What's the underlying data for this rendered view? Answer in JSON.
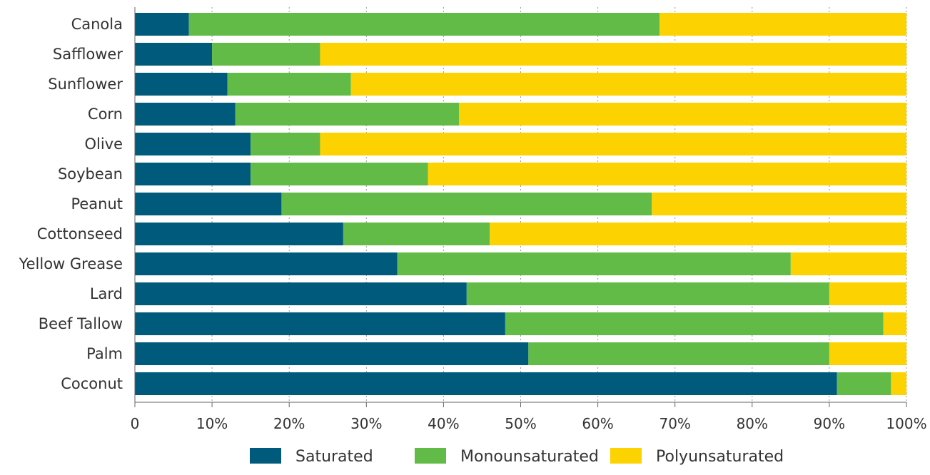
{
  "chart_data": {
    "type": "bar",
    "orientation": "horizontal",
    "stacked": true,
    "categories": [
      "Canola",
      "Safflower",
      "Sunflower",
      "Corn",
      "Olive",
      "Soybean",
      "Peanut",
      "Cottonseed",
      "Yellow Grease",
      "Lard",
      "Beef Tallow",
      "Palm",
      "Coconut"
    ],
    "series": [
      {
        "name": "Saturated",
        "color": "#005a7c",
        "values": [
          7,
          10,
          12,
          13,
          15,
          15,
          19,
          27,
          34,
          43,
          48,
          51,
          91
        ]
      },
      {
        "name": "Monounsaturated",
        "color": "#62bb47",
        "values": [
          61,
          14,
          16,
          29,
          9,
          23,
          48,
          19,
          51,
          47,
          49,
          39,
          7
        ]
      },
      {
        "name": "Polyunsaturated",
        "color": "#fcd200",
        "values": [
          32,
          76,
          72,
          58,
          76,
          62,
          33,
          54,
          15,
          10,
          3,
          10,
          2
        ]
      }
    ],
    "x_ticks": [
      "0",
      "10%",
      "20%",
      "30%",
      "40%",
      "50%",
      "60%",
      "70%",
      "80%",
      "90%",
      "100%"
    ],
    "xlim": [
      0,
      100
    ],
    "grid": "vertical dotted",
    "legend_position": "bottom-center",
    "title": "",
    "xlabel": "",
    "ylabel": ""
  }
}
